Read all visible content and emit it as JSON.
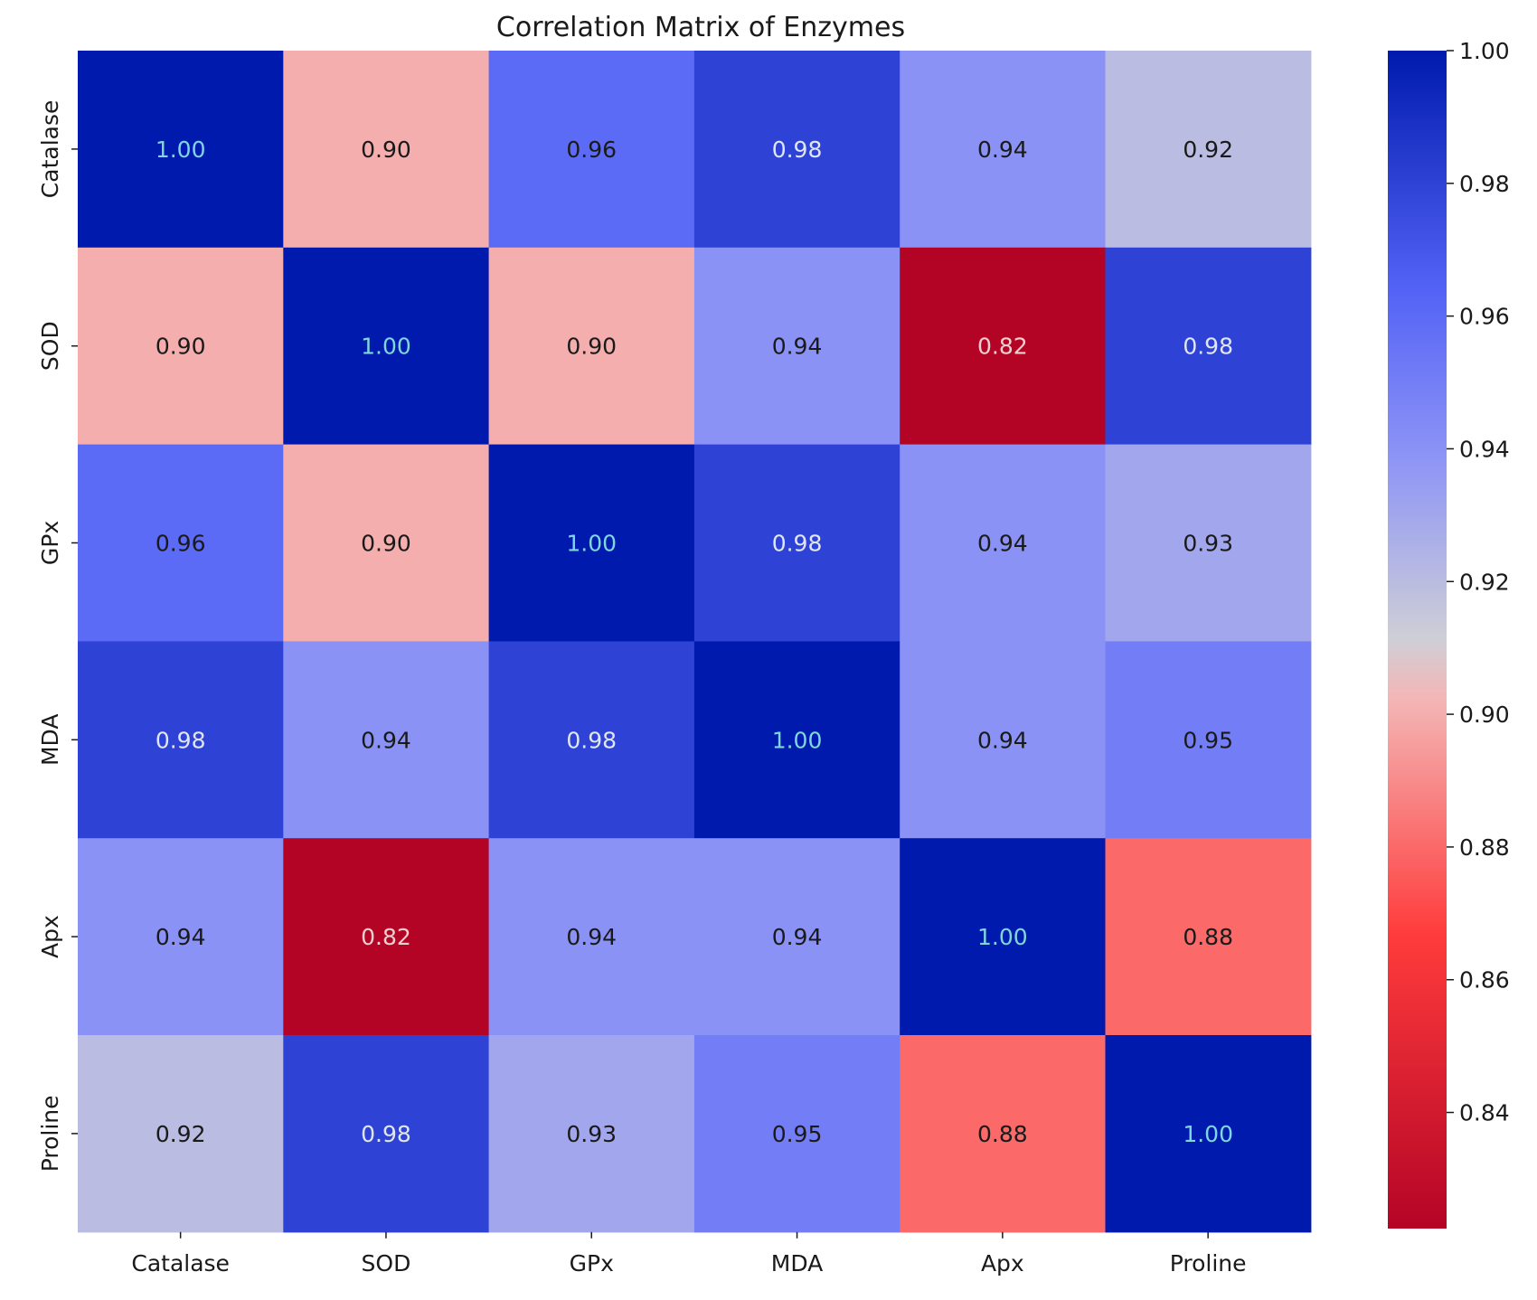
{
  "chart_data": {
    "type": "heatmap",
    "title": "Correlation Matrix of Enzymes",
    "xlabel": "",
    "ylabel": "",
    "x_categories": [
      "Catalase",
      "SOD",
      "GPx",
      "MDA",
      "Apx",
      "Proline"
    ],
    "y_categories": [
      "Catalase",
      "SOD",
      "GPx",
      "MDA",
      "Apx",
      "Proline"
    ],
    "values": [
      [
        1.0,
        0.9,
        0.96,
        0.98,
        0.94,
        0.92
      ],
      [
        0.9,
        1.0,
        0.9,
        0.94,
        0.82,
        0.98
      ],
      [
        0.96,
        0.9,
        1.0,
        0.98,
        0.94,
        0.93
      ],
      [
        0.98,
        0.94,
        0.98,
        1.0,
        0.94,
        0.95
      ],
      [
        0.94,
        0.82,
        0.94,
        0.94,
        1.0,
        0.88
      ],
      [
        0.92,
        0.98,
        0.93,
        0.95,
        0.88,
        1.0
      ]
    ],
    "cell_labels": [
      [
        "1.00",
        "0.90",
        "0.96",
        "0.98",
        "0.94",
        "0.92"
      ],
      [
        "0.90",
        "1.00",
        "0.90",
        "0.94",
        "0.82",
        "0.98"
      ],
      [
        "0.96",
        "0.90",
        "1.00",
        "0.98",
        "0.94",
        "0.93"
      ],
      [
        "0.98",
        "0.94",
        "0.98",
        "1.00",
        "0.94",
        "0.95"
      ],
      [
        "0.94",
        "0.82",
        "0.94",
        "0.94",
        "1.00",
        "0.88"
      ],
      [
        "0.92",
        "0.98",
        "0.93",
        "0.95",
        "0.88",
        "1.00"
      ]
    ],
    "colormap": "coolwarm_r",
    "color_range": [
      0.8225,
      1.0
    ],
    "colorbar": {
      "ticks": [
        1.0,
        0.98,
        0.96,
        0.94,
        0.92,
        0.9,
        0.88,
        0.86,
        0.84
      ],
      "tick_labels": [
        "1.00",
        "0.98",
        "0.96",
        "0.94",
        "0.92",
        "0.90",
        "0.88",
        "0.86",
        "0.84"
      ]
    },
    "color_stops": {
      "0.0": "#b40426",
      "0.25": "#ff3c3c",
      "0.45": "#f4b6b6",
      "0.5": "#cfcfd6",
      "0.65": "#8f96f6",
      "0.8": "#5262f5",
      "1.0": "#001aae"
    },
    "label_colors": {
      "dark": "#1a1a1a",
      "on_diagonal": "#7fd6dc",
      "on_dark": "#e0e6f0",
      "on_red": "#f0d0d0"
    },
    "grid": false,
    "legend": "colorbar-right"
  }
}
